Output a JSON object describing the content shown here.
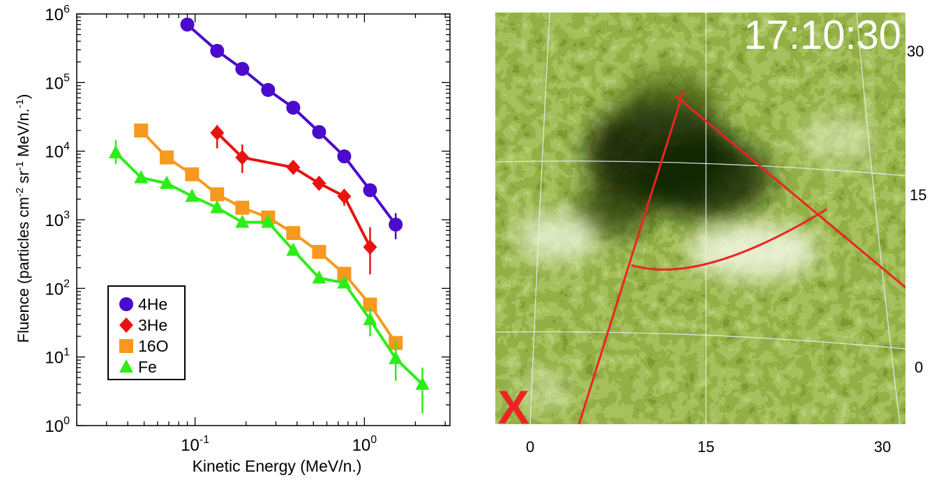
{
  "chart_data": [
    {
      "type": "scatter",
      "title": "",
      "xlabel": "Kinetic Energy (MeV/n.)",
      "ylabel_parts": {
        "pre": "Fluence (particles  cm",
        "sup1": "-2",
        "mid1": " sr",
        "sup2": "-1",
        "mid2": " MeV/n.",
        "sup3": "-1",
        "post": ")"
      },
      "x_scale": "log",
      "y_scale": "log",
      "xlim": [
        0.02,
        3.2
      ],
      "ylim": [
        1,
        1000000
      ],
      "grid": false,
      "legend_position": "bottom-left",
      "x_tick_labels": [
        {
          "value": 0.1,
          "base": "10",
          "exp": "-1"
        },
        {
          "value": 1,
          "base": "10",
          "exp": "0"
        }
      ],
      "y_tick_labels": [
        {
          "value": 1,
          "base": "10",
          "exp": "0"
        },
        {
          "value": 10,
          "base": "10",
          "exp": "1"
        },
        {
          "value": 100,
          "base": "10",
          "exp": "2"
        },
        {
          "value": 1000,
          "base": "10",
          "exp": "3"
        },
        {
          "value": 10000,
          "base": "10",
          "exp": "4"
        },
        {
          "value": 100000,
          "base": "10",
          "exp": "5"
        },
        {
          "value": 1000000,
          "base": "10",
          "exp": "6"
        }
      ],
      "series": [
        {
          "name": "4He",
          "marker": "circle",
          "color": "#4b0bcc",
          "points": [
            {
              "x": 0.09,
              "y": 700000
            },
            {
              "x": 0.135,
              "y": 290000
            },
            {
              "x": 0.19,
              "y": 158000
            },
            {
              "x": 0.27,
              "y": 78000
            },
            {
              "x": 0.38,
              "y": 43000
            },
            {
              "x": 0.54,
              "y": 19000
            },
            {
              "x": 0.76,
              "y": 8400
            },
            {
              "x": 1.08,
              "y": 2700
            },
            {
              "x": 1.53,
              "y": 850,
              "err": [
                520,
                1250
              ]
            }
          ]
        },
        {
          "name": "3He",
          "marker": "diamond",
          "color": "#e8130f",
          "points": [
            {
              "x": 0.135,
              "y": 18500,
              "err": [
                11000,
                24000
              ]
            },
            {
              "x": 0.19,
              "y": 8100,
              "err": [
                4800,
                12500
              ]
            },
            {
              "x": 0.38,
              "y": 5800,
              "err": [
                4600,
                7000
              ]
            },
            {
              "x": 0.54,
              "y": 3400,
              "err": [
                2800,
                4200
              ]
            },
            {
              "x": 0.76,
              "y": 2200,
              "err": [
                1600,
                2800
              ]
            },
            {
              "x": 1.08,
              "y": 400,
              "err": [
                160,
                780
              ]
            }
          ]
        },
        {
          "name": "16O",
          "marker": "square",
          "color": "#f7991e",
          "points": [
            {
              "x": 0.048,
              "y": 20000
            },
            {
              "x": 0.068,
              "y": 8100
            },
            {
              "x": 0.096,
              "y": 4600
            },
            {
              "x": 0.135,
              "y": 2350
            },
            {
              "x": 0.19,
              "y": 1500
            },
            {
              "x": 0.27,
              "y": 1080
            },
            {
              "x": 0.38,
              "y": 640
            },
            {
              "x": 0.54,
              "y": 340
            },
            {
              "x": 0.76,
              "y": 163
            },
            {
              "x": 1.08,
              "y": 58
            },
            {
              "x": 1.53,
              "y": 16
            }
          ]
        },
        {
          "name": "Fe",
          "marker": "triangle",
          "color": "#2ded18",
          "points": [
            {
              "x": 0.034,
              "y": 9500,
              "err": [
                6500,
                14500
              ]
            },
            {
              "x": 0.048,
              "y": 4100
            },
            {
              "x": 0.068,
              "y": 3400
            },
            {
              "x": 0.096,
              "y": 2200
            },
            {
              "x": 0.135,
              "y": 1500
            },
            {
              "x": 0.19,
              "y": 920
            },
            {
              "x": 0.27,
              "y": 920
            },
            {
              "x": 0.38,
              "y": 360
            },
            {
              "x": 0.54,
              "y": 142
            },
            {
              "x": 0.76,
              "y": 120
            },
            {
              "x": 1.08,
              "y": 35,
              "err": [
                20,
                52
              ]
            },
            {
              "x": 1.53,
              "y": 9.5,
              "err": [
                4.5,
                17
              ]
            },
            {
              "x": 2.2,
              "y": 4,
              "err": [
                1.5,
                7
              ]
            }
          ]
        }
      ]
    },
    {
      "type": "image_map",
      "title": "",
      "timestamp": "17:10:30",
      "x_tick_labels": [
        "0",
        "15",
        "30"
      ],
      "y_tick_labels": [
        "0",
        "15",
        "30"
      ],
      "marker_label": "X",
      "image_colors": {
        "light": "#f4f8e6",
        "mid": "#86a82e",
        "dark": "#2f4a0a",
        "darkest": "#0d1703"
      },
      "overlay_color": "#ee2323",
      "grid_color": "#e8eef0"
    }
  ]
}
